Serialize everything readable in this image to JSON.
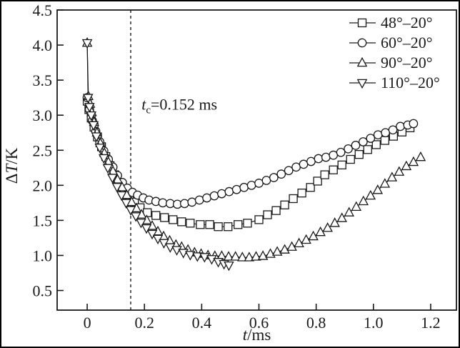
{
  "figure": {
    "background": "#ffffff",
    "frame_color": "#000000",
    "line_color": "#1a1a1a"
  },
  "chart_data": {
    "type": "line",
    "title": "",
    "xlabel": {
      "italic": "t",
      "rest": "/ms"
    },
    "ylabel": {
      "prefix": "Δ",
      "italic": "T",
      "rest": "/K"
    },
    "xlim": [
      -0.105,
      1.29
    ],
    "ylim": [
      0.22,
      4.5
    ],
    "xticks": [
      0,
      0.2,
      0.4,
      0.6,
      0.8,
      1.0,
      1.2
    ],
    "yticks": [
      0.5,
      1.0,
      1.5,
      2.0,
      2.5,
      3.0,
      3.5,
      4.0,
      4.5
    ],
    "grid": false,
    "legend_position": "top-right",
    "vline": {
      "x": 0.152,
      "style": "dashed",
      "color": "#1a1a1a"
    },
    "annotation": {
      "italic": "t",
      "sub": "c",
      "rest": "=0.152 ms",
      "x": 0.19,
      "y": 3.08
    },
    "series": [
      {
        "name": "48°–20°",
        "marker": "square",
        "points": [
          [
            0.0,
            3.2
          ],
          [
            0.006,
            3.08
          ],
          [
            0.014,
            2.96
          ],
          [
            0.024,
            2.83
          ],
          [
            0.036,
            2.69
          ],
          [
            0.05,
            2.55
          ],
          [
            0.065,
            2.41
          ],
          [
            0.08,
            2.28
          ],
          [
            0.096,
            2.15
          ],
          [
            0.113,
            2.03
          ],
          [
            0.13,
            1.92
          ],
          [
            0.148,
            1.83
          ],
          [
            0.165,
            1.76
          ],
          [
            0.185,
            1.68
          ],
          [
            0.21,
            1.61
          ],
          [
            0.24,
            1.57
          ],
          [
            0.27,
            1.54
          ],
          [
            0.3,
            1.51
          ],
          [
            0.33,
            1.48
          ],
          [
            0.36,
            1.46
          ],
          [
            0.395,
            1.44
          ],
          [
            0.428,
            1.44
          ],
          [
            0.458,
            1.41
          ],
          [
            0.492,
            1.41
          ],
          [
            0.527,
            1.44
          ],
          [
            0.56,
            1.46
          ],
          [
            0.6,
            1.51
          ],
          [
            0.63,
            1.58
          ],
          [
            0.66,
            1.64
          ],
          [
            0.69,
            1.72
          ],
          [
            0.72,
            1.81
          ],
          [
            0.75,
            1.89
          ],
          [
            0.78,
            1.97
          ],
          [
            0.805,
            2.06
          ],
          [
            0.83,
            2.15
          ],
          [
            0.86,
            2.22
          ],
          [
            0.89,
            2.29
          ],
          [
            0.92,
            2.37
          ],
          [
            0.95,
            2.44
          ],
          [
            0.98,
            2.51
          ],
          [
            1.01,
            2.58
          ],
          [
            1.04,
            2.64
          ],
          [
            1.07,
            2.7
          ],
          [
            1.1,
            2.76
          ],
          [
            1.128,
            2.82
          ]
        ]
      },
      {
        "name": "60°–20°",
        "marker": "circle",
        "points": [
          [
            0.0,
            3.25
          ],
          [
            0.008,
            3.08
          ],
          [
            0.018,
            2.92
          ],
          [
            0.03,
            2.77
          ],
          [
            0.044,
            2.62
          ],
          [
            0.058,
            2.49
          ],
          [
            0.074,
            2.37
          ],
          [
            0.09,
            2.26
          ],
          [
            0.106,
            2.14
          ],
          [
            0.123,
            2.04
          ],
          [
            0.14,
            1.96
          ],
          [
            0.158,
            1.9
          ],
          [
            0.176,
            1.86
          ],
          [
            0.196,
            1.82
          ],
          [
            0.216,
            1.79
          ],
          [
            0.24,
            1.77
          ],
          [
            0.264,
            1.75
          ],
          [
            0.29,
            1.74
          ],
          [
            0.315,
            1.73
          ],
          [
            0.34,
            1.74
          ],
          [
            0.366,
            1.76
          ],
          [
            0.392,
            1.79
          ],
          [
            0.418,
            1.82
          ],
          [
            0.444,
            1.85
          ],
          [
            0.47,
            1.88
          ],
          [
            0.496,
            1.91
          ],
          [
            0.522,
            1.94
          ],
          [
            0.548,
            1.97
          ],
          [
            0.574,
            2.0
          ],
          [
            0.6,
            2.03
          ],
          [
            0.626,
            2.07
          ],
          [
            0.652,
            2.11
          ],
          [
            0.678,
            2.16
          ],
          [
            0.704,
            2.21
          ],
          [
            0.73,
            2.26
          ],
          [
            0.756,
            2.3
          ],
          [
            0.782,
            2.34
          ],
          [
            0.808,
            2.38
          ],
          [
            0.834,
            2.4
          ],
          [
            0.86,
            2.43
          ],
          [
            0.886,
            2.47
          ],
          [
            0.912,
            2.52
          ],
          [
            0.938,
            2.57
          ],
          [
            0.964,
            2.62
          ],
          [
            0.99,
            2.67
          ],
          [
            1.016,
            2.72
          ],
          [
            1.042,
            2.75
          ],
          [
            1.068,
            2.79
          ],
          [
            1.094,
            2.84
          ],
          [
            1.12,
            2.86
          ],
          [
            1.14,
            2.88
          ]
        ]
      },
      {
        "name": "90°–20°",
        "marker": "triangle-up",
        "points": [
          [
            0.0,
            4.03
          ],
          [
            0.004,
            3.27
          ],
          [
            0.01,
            3.16
          ],
          [
            0.016,
            3.04
          ],
          [
            0.024,
            2.9
          ],
          [
            0.034,
            2.75
          ],
          [
            0.046,
            2.6
          ],
          [
            0.06,
            2.46
          ],
          [
            0.074,
            2.33
          ],
          [
            0.09,
            2.2
          ],
          [
            0.106,
            2.08
          ],
          [
            0.122,
            1.97
          ],
          [
            0.138,
            1.86
          ],
          [
            0.155,
            1.76
          ],
          [
            0.172,
            1.67
          ],
          [
            0.19,
            1.58
          ],
          [
            0.208,
            1.5
          ],
          [
            0.227,
            1.42
          ],
          [
            0.247,
            1.34
          ],
          [
            0.267,
            1.27
          ],
          [
            0.288,
            1.21
          ],
          [
            0.31,
            1.15
          ],
          [
            0.33,
            1.12
          ],
          [
            0.352,
            1.08
          ],
          [
            0.375,
            1.04
          ],
          [
            0.398,
            1.02
          ],
          [
            0.422,
            1.0
          ],
          [
            0.446,
            0.99
          ],
          [
            0.47,
            0.99
          ],
          [
            0.494,
            0.98
          ],
          [
            0.518,
            0.98
          ],
          [
            0.542,
            0.97
          ],
          [
            0.566,
            0.97
          ],
          [
            0.59,
            0.98
          ],
          [
            0.614,
            0.99
          ],
          [
            0.64,
            1.02
          ],
          [
            0.664,
            1.05
          ],
          [
            0.69,
            1.08
          ],
          [
            0.715,
            1.12
          ],
          [
            0.74,
            1.17
          ],
          [
            0.765,
            1.22
          ],
          [
            0.79,
            1.27
          ],
          [
            0.815,
            1.33
          ],
          [
            0.84,
            1.39
          ],
          [
            0.865,
            1.46
          ],
          [
            0.89,
            1.53
          ],
          [
            0.915,
            1.61
          ],
          [
            0.94,
            1.69
          ],
          [
            0.965,
            1.77
          ],
          [
            0.99,
            1.85
          ],
          [
            1.015,
            1.93
          ],
          [
            1.04,
            2.02
          ],
          [
            1.065,
            2.11
          ],
          [
            1.09,
            2.19
          ],
          [
            1.115,
            2.27
          ],
          [
            1.14,
            2.33
          ],
          [
            1.165,
            2.4
          ]
        ]
      },
      {
        "name": "110°–20°",
        "marker": "triangle-down",
        "points": [
          [
            0.0,
            4.03
          ],
          [
            0.003,
            3.25
          ],
          [
            0.008,
            3.12
          ],
          [
            0.014,
            3.0
          ],
          [
            0.022,
            2.86
          ],
          [
            0.032,
            2.7
          ],
          [
            0.044,
            2.54
          ],
          [
            0.058,
            2.39
          ],
          [
            0.072,
            2.25
          ],
          [
            0.088,
            2.11
          ],
          [
            0.104,
            1.98
          ],
          [
            0.12,
            1.86
          ],
          [
            0.136,
            1.75
          ],
          [
            0.152,
            1.65
          ],
          [
            0.17,
            1.56
          ],
          [
            0.188,
            1.47
          ],
          [
            0.207,
            1.39
          ],
          [
            0.227,
            1.31
          ],
          [
            0.247,
            1.24
          ],
          [
            0.268,
            1.18
          ],
          [
            0.29,
            1.12
          ],
          [
            0.313,
            1.08
          ],
          [
            0.336,
            1.04
          ],
          [
            0.36,
            1.01
          ],
          [
            0.385,
            0.99
          ],
          [
            0.41,
            0.98
          ],
          [
            0.435,
            0.95
          ],
          [
            0.458,
            0.91
          ],
          [
            0.478,
            0.88
          ],
          [
            0.495,
            0.86
          ]
        ]
      }
    ]
  }
}
